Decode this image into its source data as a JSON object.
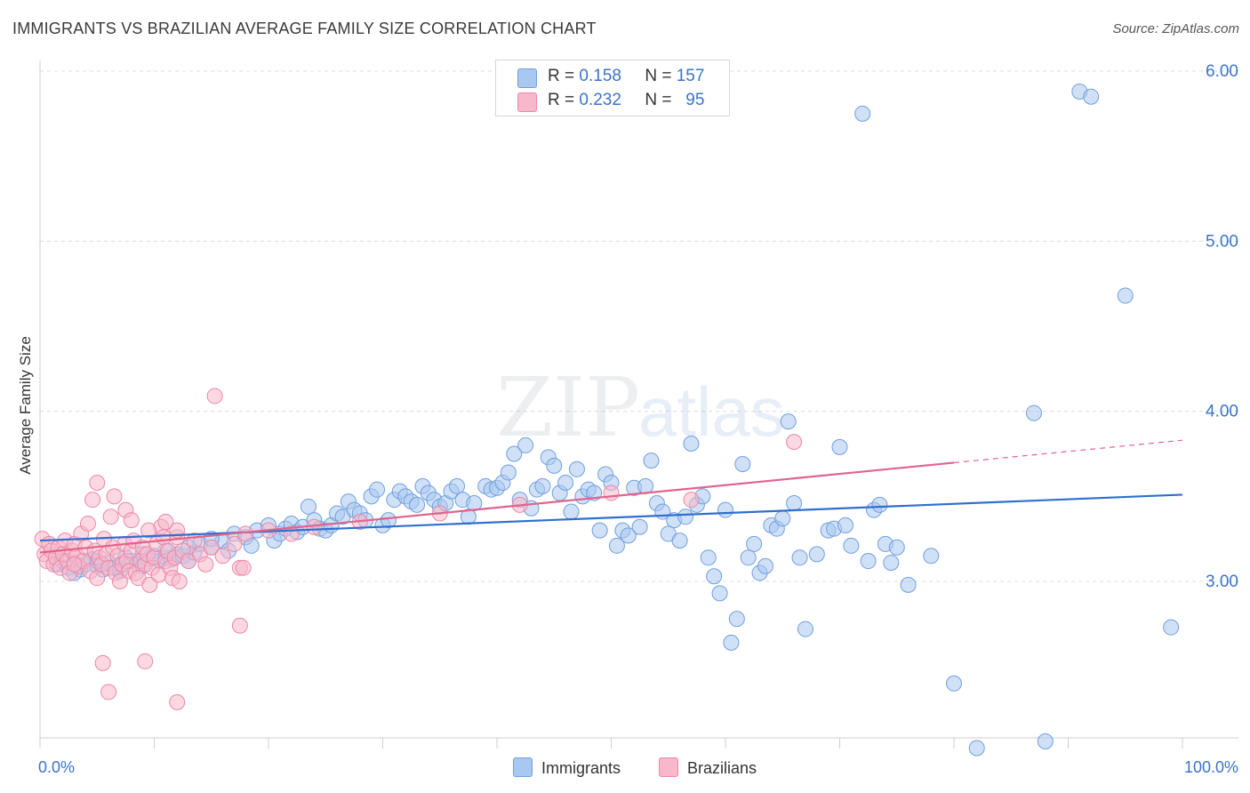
{
  "title": "IMMIGRANTS VS BRAZILIAN AVERAGE FAMILY SIZE CORRELATION CHART",
  "source": "Source: ZipAtlas.com",
  "watermark": {
    "zip": "ZIP",
    "atlas": "atlas"
  },
  "legend": {
    "immigrants": {
      "r_label": "R =",
      "r_value": "0.158",
      "n_label": "N =",
      "n_value": "157"
    },
    "brazilians": {
      "r_label": "R =",
      "r_value": "0.232",
      "n_label": "N =",
      "n_value": "95"
    }
  },
  "bottom_legend": {
    "immigrants": "Immigrants",
    "brazilians": "Brazilians"
  },
  "colors": {
    "immigrants_fill": "#a9c8f0",
    "immigrants_stroke": "#6f9fde",
    "immigrants_line": "#2f6fcf",
    "brazilians_fill": "#f7b8cb",
    "brazilians_stroke": "#ec88a6",
    "brazilians_line": "#e0648c",
    "axis_label": "#3b73c8",
    "grid": "#dcdcdc"
  },
  "chart_data": {
    "type": "scatter",
    "title": "IMMIGRANTS VS BRAZILIAN AVERAGE FAMILY SIZE CORRELATION CHART",
    "xlabel": "",
    "ylabel": "Average Family Size",
    "x_tick_labels": [
      "0.0%",
      "100.0%"
    ],
    "y_tick_labels": [
      "3.00",
      "4.00",
      "5.00",
      "6.00"
    ],
    "xlim": [
      0,
      100
    ],
    "ylim": [
      2.0,
      6.1
    ],
    "grid": true,
    "legend_placement": "top-center",
    "series": [
      {
        "name": "Immigrants",
        "r": 0.158,
        "n": 157,
        "trend": {
          "x": [
            0,
            100
          ],
          "y": [
            3.24,
            3.51
          ],
          "dashed_from": null
        },
        "points": [
          [
            1.5,
            3.1
          ],
          [
            2,
            3.12
          ],
          [
            2.5,
            3.08
          ],
          [
            3,
            3.11
          ],
          [
            3.5,
            3.07
          ],
          [
            4,
            3.1
          ],
          [
            4.5,
            3.13
          ],
          [
            5,
            3.09
          ],
          [
            5.5,
            3.07
          ],
          [
            6,
            3.11
          ],
          [
            6.5,
            3.08
          ],
          [
            7,
            3.1
          ],
          [
            7.5,
            3.14
          ],
          [
            8,
            3.12
          ],
          [
            8.5,
            3.1
          ],
          [
            9,
            3.16
          ],
          [
            9.5,
            3.13
          ],
          [
            10,
            3.15
          ],
          [
            10.5,
            3.12
          ],
          [
            11,
            3.14
          ],
          [
            11.5,
            3.13
          ],
          [
            12,
            3.16
          ],
          [
            12.5,
            3.15
          ],
          [
            13,
            3.12
          ],
          [
            13.5,
            3.17
          ],
          [
            14,
            3.22
          ],
          [
            15,
            3.2
          ],
          [
            16,
            3.24
          ],
          [
            16.5,
            3.18
          ],
          [
            17,
            3.28
          ],
          [
            18,
            3.26
          ],
          [
            18.5,
            3.21
          ],
          [
            19,
            3.3
          ],
          [
            20,
            3.33
          ],
          [
            20.5,
            3.24
          ],
          [
            21,
            3.28
          ],
          [
            21.5,
            3.31
          ],
          [
            22,
            3.34
          ],
          [
            22.5,
            3.29
          ],
          [
            23,
            3.32
          ],
          [
            23.5,
            3.44
          ],
          [
            24,
            3.36
          ],
          [
            24.5,
            3.31
          ],
          [
            25,
            3.3
          ],
          [
            25.5,
            3.33
          ],
          [
            26,
            3.4
          ],
          [
            26.5,
            3.38
          ],
          [
            27,
            3.47
          ],
          [
            27.5,
            3.42
          ],
          [
            28,
            3.4
          ],
          [
            28.5,
            3.36
          ],
          [
            29,
            3.5
          ],
          [
            29.5,
            3.54
          ],
          [
            30,
            3.33
          ],
          [
            30.5,
            3.36
          ],
          [
            31,
            3.48
          ],
          [
            31.5,
            3.53
          ],
          [
            32,
            3.5
          ],
          [
            32.5,
            3.47
          ],
          [
            33,
            3.45
          ],
          [
            33.5,
            3.56
          ],
          [
            34,
            3.52
          ],
          [
            34.5,
            3.48
          ],
          [
            35,
            3.44
          ],
          [
            35.5,
            3.46
          ],
          [
            36,
            3.53
          ],
          [
            36.5,
            3.56
          ],
          [
            37,
            3.48
          ],
          [
            37.5,
            3.38
          ],
          [
            38,
            3.46
          ],
          [
            39,
            3.56
          ],
          [
            39.5,
            3.54
          ],
          [
            40,
            3.55
          ],
          [
            40.5,
            3.58
          ],
          [
            41,
            3.64
          ],
          [
            41.5,
            3.75
          ],
          [
            42,
            3.48
          ],
          [
            42.5,
            3.8
          ],
          [
            43,
            3.43
          ],
          [
            43.5,
            3.54
          ],
          [
            44,
            3.56
          ],
          [
            44.5,
            3.73
          ],
          [
            45,
            3.68
          ],
          [
            45.5,
            3.52
          ],
          [
            46,
            3.58
          ],
          [
            46.5,
            3.41
          ],
          [
            47,
            3.66
          ],
          [
            47.5,
            3.5
          ],
          [
            48,
            3.54
          ],
          [
            48.5,
            3.52
          ],
          [
            49,
            3.3
          ],
          [
            49.5,
            3.63
          ],
          [
            50,
            3.58
          ],
          [
            50.5,
            3.21
          ],
          [
            51,
            3.3
          ],
          [
            51.5,
            3.27
          ],
          [
            52,
            3.55
          ],
          [
            52.5,
            3.32
          ],
          [
            53,
            3.56
          ],
          [
            53.5,
            3.71
          ],
          [
            54,
            3.46
          ],
          [
            54.5,
            3.41
          ],
          [
            55,
            3.28
          ],
          [
            55.5,
            3.36
          ],
          [
            56,
            3.24
          ],
          [
            56.5,
            3.38
          ],
          [
            57,
            3.81
          ],
          [
            57.5,
            3.45
          ],
          [
            58,
            3.5
          ],
          [
            58.5,
            3.14
          ],
          [
            59,
            3.03
          ],
          [
            59.5,
            2.93
          ],
          [
            60,
            3.42
          ],
          [
            60.5,
            2.64
          ],
          [
            61,
            2.78
          ],
          [
            61.5,
            3.69
          ],
          [
            62,
            3.14
          ],
          [
            62.5,
            3.22
          ],
          [
            63,
            3.05
          ],
          [
            63.5,
            3.09
          ],
          [
            64,
            3.33
          ],
          [
            64.5,
            3.31
          ],
          [
            65,
            3.37
          ],
          [
            65.5,
            3.94
          ],
          [
            66,
            3.46
          ],
          [
            66.5,
            3.14
          ],
          [
            67,
            2.72
          ],
          [
            68,
            3.16
          ],
          [
            69,
            3.3
          ],
          [
            69.5,
            3.31
          ],
          [
            70,
            3.79
          ],
          [
            70.5,
            3.33
          ],
          [
            71,
            3.21
          ],
          [
            72,
            5.75
          ],
          [
            72.5,
            3.12
          ],
          [
            73,
            3.42
          ],
          [
            73.5,
            3.45
          ],
          [
            74,
            3.22
          ],
          [
            74.5,
            3.11
          ],
          [
            75,
            3.2
          ],
          [
            76,
            2.98
          ],
          [
            78,
            3.15
          ],
          [
            80,
            2.4
          ],
          [
            82,
            2.02
          ],
          [
            87,
            3.99
          ],
          [
            88,
            2.06
          ],
          [
            91,
            5.88
          ],
          [
            92,
            5.85
          ],
          [
            95,
            4.68
          ],
          [
            99,
            2.73
          ],
          [
            3,
            3.05
          ],
          [
            5,
            3.12
          ],
          [
            7,
            3.06
          ],
          [
            9,
            3.09
          ],
          [
            11,
            3.18
          ],
          [
            13,
            3.2
          ],
          [
            15,
            3.25
          ]
        ]
      },
      {
        "name": "Brazilians",
        "r": 0.232,
        "n": 95,
        "trend": {
          "x": [
            0,
            100
          ],
          "y": [
            3.17,
            3.83
          ],
          "dashed_from": 80
        },
        "points": [
          [
            0.2,
            3.25
          ],
          [
            0.4,
            3.16
          ],
          [
            0.6,
            3.12
          ],
          [
            0.8,
            3.22
          ],
          [
            1,
            3.18
          ],
          [
            1.2,
            3.1
          ],
          [
            1.4,
            3.14
          ],
          [
            1.6,
            3.2
          ],
          [
            1.8,
            3.08
          ],
          [
            2,
            3.16
          ],
          [
            2.2,
            3.24
          ],
          [
            2.4,
            3.12
          ],
          [
            2.6,
            3.05
          ],
          [
            2.8,
            3.18
          ],
          [
            3,
            3.22
          ],
          [
            3.2,
            3.15
          ],
          [
            3.4,
            3.09
          ],
          [
            3.6,
            3.28
          ],
          [
            3.8,
            3.12
          ],
          [
            4,
            3.2
          ],
          [
            4.2,
            3.34
          ],
          [
            4.4,
            3.06
          ],
          [
            4.6,
            3.48
          ],
          [
            4.8,
            3.18
          ],
          [
            5,
            3.02
          ],
          [
            5.2,
            3.14
          ],
          [
            5.4,
            3.1
          ],
          [
            5.6,
            3.25
          ],
          [
            5.8,
            3.16
          ],
          [
            6,
            3.08
          ],
          [
            6.2,
            3.38
          ],
          [
            6.4,
            3.2
          ],
          [
            6.6,
            3.05
          ],
          [
            6.8,
            3.15
          ],
          [
            7,
            3.0
          ],
          [
            7.2,
            3.1
          ],
          [
            7.4,
            3.22
          ],
          [
            7.6,
            3.12
          ],
          [
            7.8,
            3.06
          ],
          [
            8,
            3.18
          ],
          [
            8.2,
            3.24
          ],
          [
            8.4,
            3.05
          ],
          [
            8.6,
            3.02
          ],
          [
            8.8,
            3.12
          ],
          [
            9,
            3.2
          ],
          [
            9.2,
            3.1
          ],
          [
            9.4,
            3.16
          ],
          [
            9.6,
            2.98
          ],
          [
            9.8,
            3.08
          ],
          [
            10,
            3.14
          ],
          [
            10.2,
            3.22
          ],
          [
            10.4,
            3.04
          ],
          [
            10.6,
            3.32
          ],
          [
            10.8,
            3.26
          ],
          [
            11,
            3.12
          ],
          [
            11.2,
            3.18
          ],
          [
            11.4,
            3.08
          ],
          [
            11.6,
            3.02
          ],
          [
            11.8,
            3.14
          ],
          [
            12,
            3.26
          ],
          [
            12.5,
            3.18
          ],
          [
            13,
            3.12
          ],
          [
            13.5,
            3.24
          ],
          [
            14,
            3.16
          ],
          [
            14.5,
            3.1
          ],
          [
            15,
            3.2
          ],
          [
            16,
            3.15
          ],
          [
            17,
            3.22
          ],
          [
            17.5,
            3.08
          ],
          [
            18,
            3.28
          ],
          [
            5,
            3.58
          ],
          [
            6.5,
            3.5
          ],
          [
            7.5,
            3.42
          ],
          [
            8,
            3.36
          ],
          [
            9.5,
            3.3
          ],
          [
            11,
            3.35
          ],
          [
            12,
            3.3
          ],
          [
            12.2,
            3.0
          ],
          [
            6,
            2.35
          ],
          [
            5.5,
            2.52
          ],
          [
            9.2,
            2.53
          ],
          [
            12,
            2.29
          ],
          [
            15.3,
            4.09
          ],
          [
            17.5,
            2.74
          ],
          [
            17.8,
            3.08
          ],
          [
            20,
            3.3
          ],
          [
            22,
            3.28
          ],
          [
            24,
            3.32
          ],
          [
            28,
            3.35
          ],
          [
            35,
            3.4
          ],
          [
            42,
            3.45
          ],
          [
            50,
            3.52
          ],
          [
            57,
            3.48
          ],
          [
            66,
            3.82
          ],
          [
            3,
            3.1
          ]
        ]
      }
    ]
  }
}
